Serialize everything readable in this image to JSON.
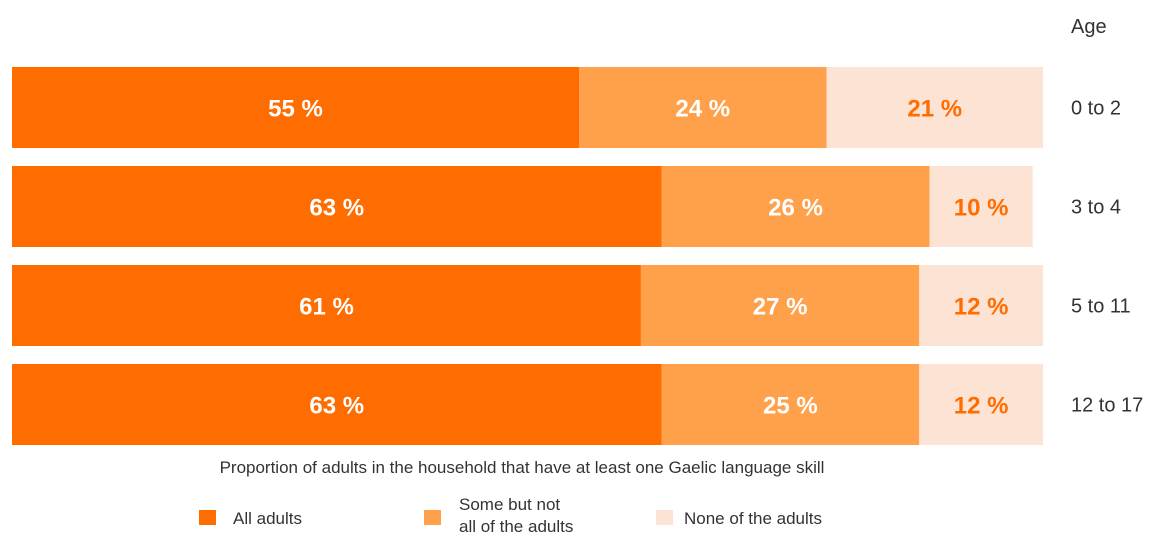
{
  "chart_data": {
    "type": "bar",
    "orientation": "horizontal",
    "stacked": true,
    "ylabel": "Age",
    "xlabel": "Proportion of adults in the household that have at least one Gaelic language skill",
    "categories": [
      "0 to 2",
      "3 to 4",
      "5 to 11",
      "12 to 17"
    ],
    "xlim": [
      0,
      100
    ],
    "grid": false,
    "legend_position": "bottom",
    "series": [
      {
        "name": "All adults",
        "values": [
          55,
          63,
          61,
          63
        ],
        "labels": [
          "55 %",
          "63 %",
          "61 %",
          "63 %"
        ],
        "color": "#ff6c00",
        "label_color": "#ffffff"
      },
      {
        "name": "Some but not all of the adults",
        "values": [
          24,
          26,
          27,
          25
        ],
        "labels": [
          "24 %",
          "26 %",
          "27 %",
          "25 %"
        ],
        "color": "#ffa04a",
        "label_color": "#ffffff"
      },
      {
        "name": "None of the adults",
        "values": [
          21,
          10,
          12,
          12
        ],
        "labels": [
          "21 %",
          "10 %",
          "12 %",
          "12 %"
        ],
        "color": "#fde3d3",
        "label_color": "#ff6c00"
      }
    ],
    "legend": {
      "items": [
        {
          "line1": "All adults",
          "line2": ""
        },
        {
          "line1": "Some but not",
          "line2": "all of the adults"
        },
        {
          "line1": "None of the adults",
          "line2": ""
        }
      ]
    }
  }
}
